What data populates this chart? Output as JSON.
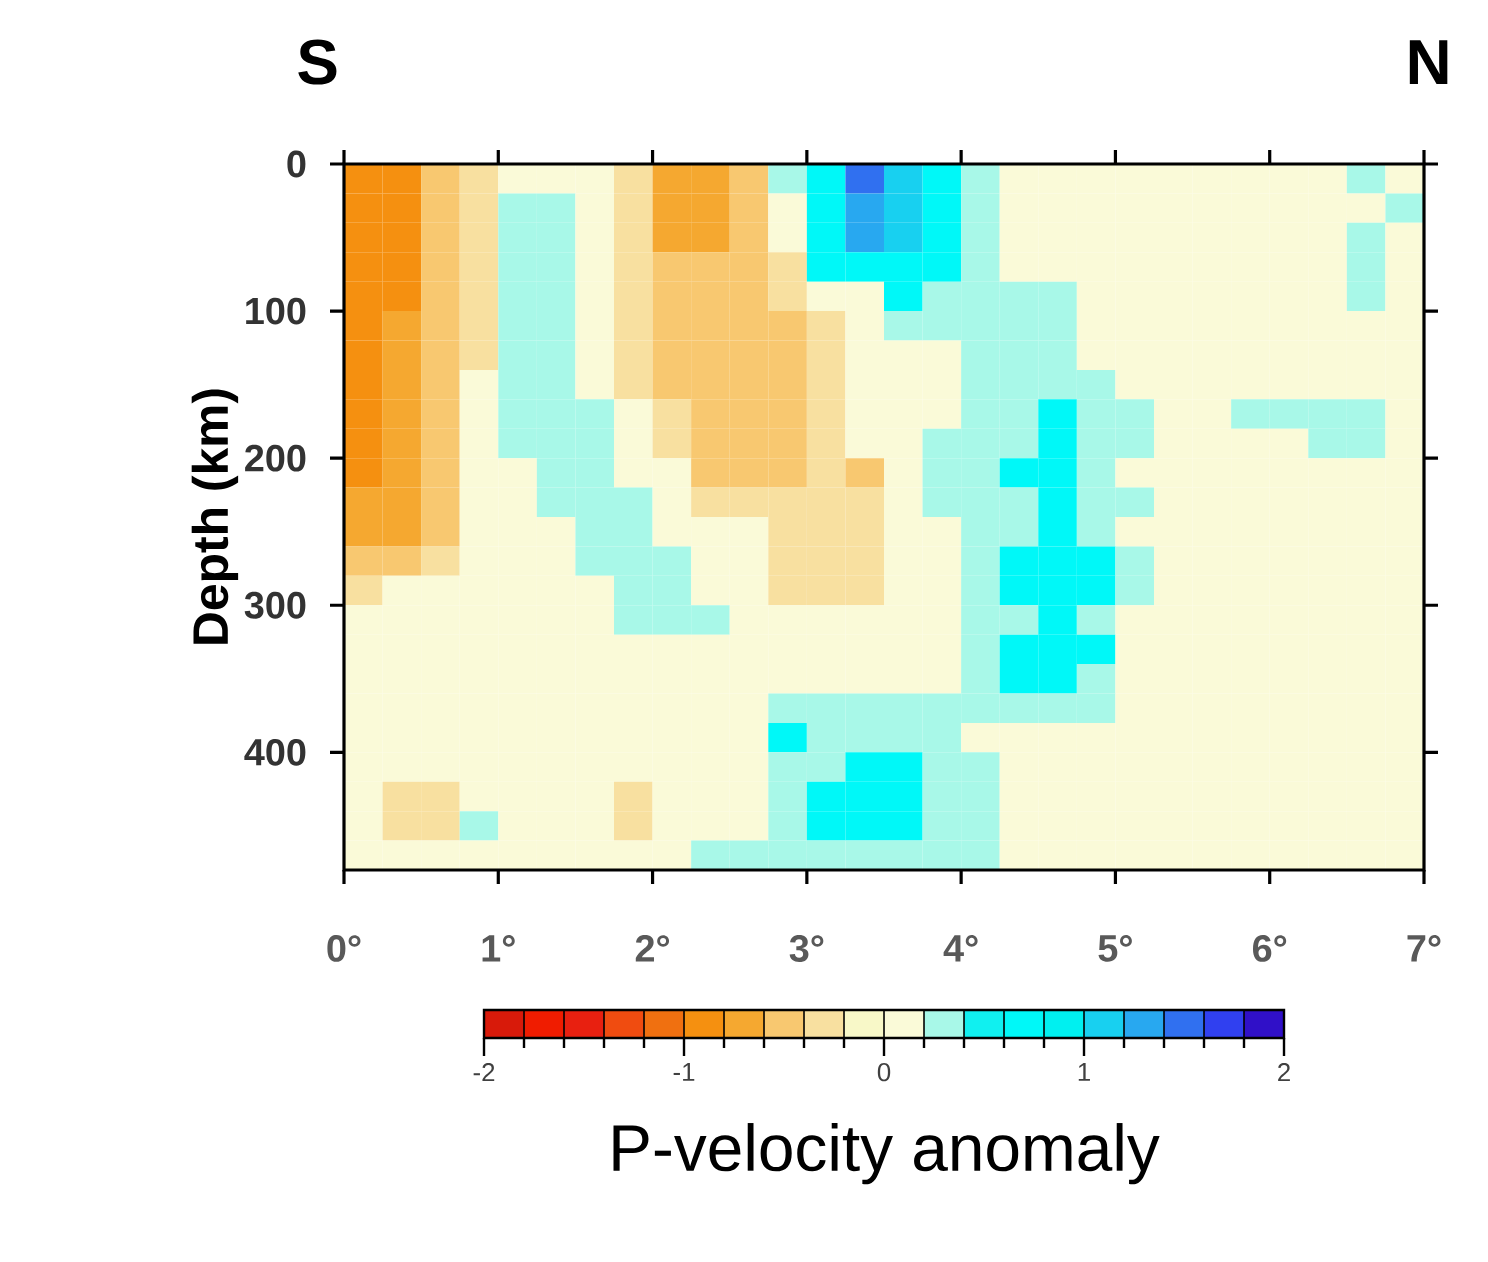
{
  "chart_data": {
    "type": "heatmap",
    "annotations": [
      "S",
      "N"
    ],
    "ylabel": "Depth (km)",
    "clabel": "P-velocity anomaly",
    "xlim": [
      0,
      7
    ],
    "xticks": [
      {
        "value": 0,
        "label": "0°"
      },
      {
        "value": 1,
        "label": "1°"
      },
      {
        "value": 2,
        "label": "2°"
      },
      {
        "value": 3,
        "label": "3°"
      },
      {
        "value": 4,
        "label": "4°"
      },
      {
        "value": 5,
        "label": "5°"
      },
      {
        "value": 6,
        "label": "6°"
      },
      {
        "value": 7,
        "label": "7°"
      }
    ],
    "ylim": [
      480,
      0
    ],
    "yticks": [
      0,
      100,
      200,
      300,
      400
    ],
    "clim": [
      -2,
      2
    ],
    "cticks": [
      -2,
      -1,
      0,
      1,
      2
    ],
    "cells": [
      [
        -0.9,
        -0.9,
        -0.5,
        -0.3,
        0.1,
        0.1,
        0.1,
        -0.3,
        -0.7,
        -0.7,
        -0.5,
        0.3,
        0.7,
        1.5,
        1.1,
        0.7,
        0.3,
        0.1,
        0.1,
        0.1,
        0.1,
        0.1,
        0.1,
        0.1,
        0.1,
        0.1,
        0.3,
        0.1
      ],
      [
        -0.9,
        -0.9,
        -0.5,
        -0.3,
        0.3,
        0.3,
        0.1,
        -0.3,
        -0.7,
        -0.7,
        -0.5,
        0.1,
        0.7,
        1.3,
        1.1,
        0.7,
        0.3,
        0.1,
        0.1,
        0.1,
        0.1,
        0.1,
        0.1,
        0.1,
        0.1,
        0.1,
        0.1,
        0.3
      ],
      [
        -0.9,
        -0.9,
        -0.5,
        -0.3,
        0.3,
        0.3,
        0.1,
        -0.3,
        -0.7,
        -0.7,
        -0.5,
        0.1,
        0.7,
        1.3,
        1.1,
        0.7,
        0.3,
        0.1,
        0.1,
        0.1,
        0.1,
        0.1,
        0.1,
        0.1,
        0.1,
        0.1,
        0.3,
        0.1
      ],
      [
        -0.9,
        -0.9,
        -0.5,
        -0.3,
        0.3,
        0.3,
        0.1,
        -0.3,
        -0.5,
        -0.5,
        -0.5,
        -0.3,
        0.7,
        0.7,
        0.7,
        0.7,
        0.3,
        0.1,
        0.1,
        0.1,
        0.1,
        0.1,
        0.1,
        0.1,
        0.1,
        0.1,
        0.3,
        0.1
      ],
      [
        -0.9,
        -0.9,
        -0.5,
        -0.3,
        0.3,
        0.3,
        0.1,
        -0.3,
        -0.5,
        -0.5,
        -0.5,
        -0.3,
        0.1,
        0.1,
        0.7,
        0.3,
        0.3,
        0.3,
        0.3,
        0.1,
        0.1,
        0.1,
        0.1,
        0.1,
        0.1,
        0.1,
        0.3,
        0.1
      ],
      [
        -0.9,
        -0.7,
        -0.5,
        -0.3,
        0.3,
        0.3,
        0.1,
        -0.3,
        -0.5,
        -0.5,
        -0.5,
        -0.5,
        -0.3,
        0.1,
        0.3,
        0.3,
        0.3,
        0.3,
        0.3,
        0.1,
        0.1,
        0.1,
        0.1,
        0.1,
        0.1,
        0.1,
        0.1,
        0.1
      ],
      [
        -0.9,
        -0.7,
        -0.5,
        -0.3,
        0.3,
        0.3,
        0.1,
        -0.3,
        -0.5,
        -0.5,
        -0.5,
        -0.5,
        -0.3,
        0.1,
        0.1,
        0.1,
        0.3,
        0.3,
        0.3,
        0.1,
        0.1,
        0.1,
        0.1,
        0.1,
        0.1,
        0.1,
        0.1,
        0.1
      ],
      [
        -0.9,
        -0.7,
        -0.5,
        0.1,
        0.3,
        0.3,
        0.1,
        -0.3,
        -0.5,
        -0.5,
        -0.5,
        -0.5,
        -0.3,
        0.1,
        0.1,
        0.1,
        0.3,
        0.3,
        0.3,
        0.3,
        0.1,
        0.1,
        0.1,
        0.1,
        0.1,
        0.1,
        0.1,
        0.1
      ],
      [
        -0.9,
        -0.7,
        -0.5,
        0.1,
        0.3,
        0.3,
        0.3,
        0.1,
        -0.3,
        -0.5,
        -0.5,
        -0.5,
        -0.3,
        0.1,
        0.1,
        0.1,
        0.3,
        0.3,
        0.7,
        0.3,
        0.3,
        0.1,
        0.1,
        0.3,
        0.3,
        0.3,
        0.3,
        0.1
      ],
      [
        -0.9,
        -0.7,
        -0.5,
        0.1,
        0.3,
        0.3,
        0.3,
        0.1,
        -0.3,
        -0.5,
        -0.5,
        -0.5,
        -0.3,
        0.1,
        0.1,
        0.3,
        0.3,
        0.3,
        0.7,
        0.3,
        0.3,
        0.1,
        0.1,
        0.1,
        0.1,
        0.3,
        0.3,
        0.1
      ],
      [
        -0.9,
        -0.7,
        -0.5,
        0.1,
        0.1,
        0.3,
        0.3,
        0.1,
        0.1,
        -0.5,
        -0.5,
        -0.5,
        -0.3,
        -0.5,
        0.1,
        0.3,
        0.3,
        0.7,
        0.7,
        0.3,
        0.1,
        0.1,
        0.1,
        0.1,
        0.1,
        0.1,
        0.1,
        0.1
      ],
      [
        -0.7,
        -0.7,
        -0.5,
        0.1,
        0.1,
        0.3,
        0.3,
        0.3,
        0.1,
        -0.3,
        -0.3,
        -0.3,
        -0.3,
        -0.3,
        0.1,
        0.3,
        0.3,
        0.3,
        0.7,
        0.3,
        0.3,
        0.1,
        0.1,
        0.1,
        0.1,
        0.1,
        0.1,
        0.1
      ],
      [
        -0.7,
        -0.7,
        -0.5,
        0.1,
        0.1,
        0.1,
        0.3,
        0.3,
        0.1,
        0.1,
        0.1,
        -0.3,
        -0.3,
        -0.3,
        0.1,
        0.1,
        0.3,
        0.3,
        0.7,
        0.3,
        0.1,
        0.1,
        0.1,
        0.1,
        0.1,
        0.1,
        0.1,
        0.1
      ],
      [
        -0.5,
        -0.5,
        -0.3,
        0.1,
        0.1,
        0.1,
        0.3,
        0.3,
        0.3,
        0.1,
        0.1,
        -0.3,
        -0.3,
        -0.3,
        0.1,
        0.1,
        0.3,
        0.7,
        0.7,
        0.7,
        0.3,
        0.1,
        0.1,
        0.1,
        0.1,
        0.1,
        0.1,
        0.1
      ],
      [
        -0.3,
        0.1,
        0.1,
        0.1,
        0.1,
        0.1,
        0.1,
        0.3,
        0.3,
        0.1,
        0.1,
        -0.3,
        -0.3,
        -0.3,
        0.1,
        0.1,
        0.3,
        0.7,
        0.7,
        0.7,
        0.3,
        0.1,
        0.1,
        0.1,
        0.1,
        0.1,
        0.1,
        0.1
      ],
      [
        0.1,
        0.1,
        0.1,
        0.1,
        0.1,
        0.1,
        0.1,
        0.3,
        0.3,
        0.3,
        0.1,
        0.1,
        0.1,
        0.1,
        0.1,
        0.1,
        0.3,
        0.3,
        0.7,
        0.3,
        0.1,
        0.1,
        0.1,
        0.1,
        0.1,
        0.1,
        0.1,
        0.1
      ],
      [
        0.1,
        0.1,
        0.1,
        0.1,
        0.1,
        0.1,
        0.1,
        0.1,
        0.1,
        0.1,
        0.1,
        0.1,
        0.1,
        0.1,
        0.1,
        0.1,
        0.3,
        0.7,
        0.7,
        0.7,
        0.1,
        0.1,
        0.1,
        0.1,
        0.1,
        0.1,
        0.1,
        0.1
      ],
      [
        0.1,
        0.1,
        0.1,
        0.1,
        0.1,
        0.1,
        0.1,
        0.1,
        0.1,
        0.1,
        0.1,
        0.1,
        0.1,
        0.1,
        0.1,
        0.1,
        0.3,
        0.7,
        0.7,
        0.3,
        0.1,
        0.1,
        0.1,
        0.1,
        0.1,
        0.1,
        0.1,
        0.1
      ],
      [
        0.1,
        0.1,
        0.1,
        0.1,
        0.1,
        0.1,
        0.1,
        0.1,
        0.1,
        0.1,
        0.1,
        0.3,
        0.3,
        0.3,
        0.3,
        0.3,
        0.3,
        0.3,
        0.3,
        0.3,
        0.1,
        0.1,
        0.1,
        0.1,
        0.1,
        0.1,
        0.1,
        0.1
      ],
      [
        0.1,
        0.1,
        0.1,
        0.1,
        0.1,
        0.1,
        0.1,
        0.1,
        0.1,
        0.1,
        0.1,
        0.7,
        0.3,
        0.3,
        0.3,
        0.3,
        0.1,
        0.1,
        0.1,
        0.1,
        0.1,
        0.1,
        0.1,
        0.1,
        0.1,
        0.1,
        0.1,
        0.1
      ],
      [
        0.1,
        0.1,
        0.1,
        0.1,
        0.1,
        0.1,
        0.1,
        0.1,
        0.1,
        0.1,
        0.1,
        0.3,
        0.3,
        0.7,
        0.7,
        0.3,
        0.3,
        0.1,
        0.1,
        0.1,
        0.1,
        0.1,
        0.1,
        0.1,
        0.1,
        0.1,
        0.1,
        0.1
      ],
      [
        0.1,
        -0.3,
        -0.3,
        0.1,
        0.1,
        0.1,
        0.1,
        -0.3,
        0.1,
        0.1,
        0.1,
        0.3,
        0.7,
        0.7,
        0.7,
        0.3,
        0.3,
        0.1,
        0.1,
        0.1,
        0.1,
        0.1,
        0.1,
        0.1,
        0.1,
        0.1,
        0.1,
        0.1
      ],
      [
        0.1,
        -0.3,
        -0.3,
        0.3,
        0.1,
        0.1,
        0.1,
        -0.3,
        0.1,
        0.1,
        0.1,
        0.3,
        0.7,
        0.7,
        0.7,
        0.3,
        0.3,
        0.1,
        0.1,
        0.1,
        0.1,
        0.1,
        0.1,
        0.1,
        0.1,
        0.1,
        0.1,
        0.1
      ],
      [
        0.1,
        0.1,
        0.1,
        0.1,
        0.1,
        0.1,
        0.1,
        0.1,
        0.1,
        0.3,
        0.3,
        0.3,
        0.3,
        0.3,
        0.3,
        0.3,
        0.3,
        0.1,
        0.1,
        0.1,
        0.1,
        0.1,
        0.1,
        0.1,
        0.1,
        0.1,
        0.1,
        0.1
      ]
    ]
  }
}
